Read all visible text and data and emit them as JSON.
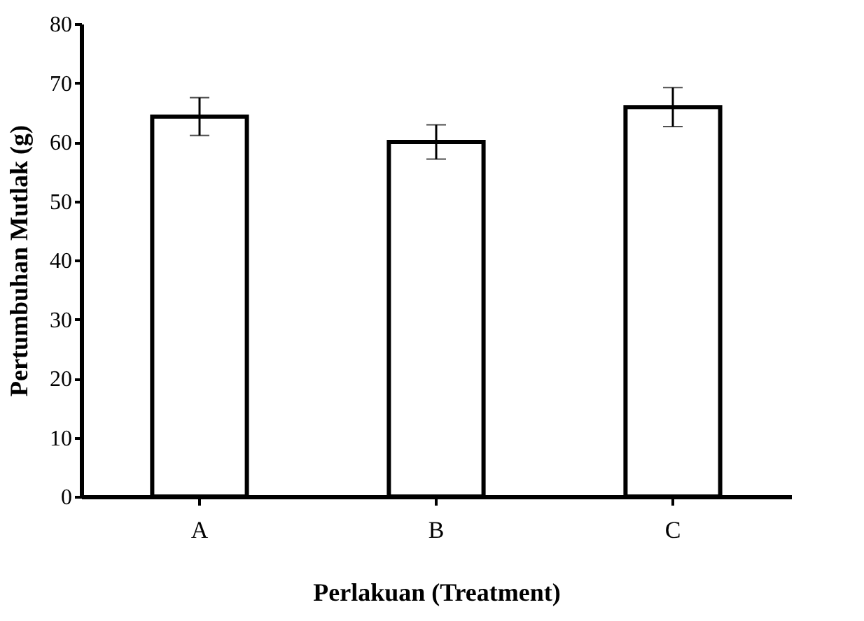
{
  "chart_data": {
    "type": "bar",
    "xlabel": "Perlakuan (Treatment)",
    "ylabel": "Pertumbuhan Mutlak (g)",
    "categories": [
      "A",
      "B",
      "C"
    ],
    "values": [
      64.3,
      60.0,
      65.9
    ],
    "errors": [
      3.2,
      2.9,
      3.3
    ],
    "color": "#ffffff",
    "ylim": [
      0,
      80
    ],
    "yticks": [
      0,
      10,
      20,
      30,
      40,
      50,
      60,
      70,
      80
    ],
    "grid": false
  }
}
